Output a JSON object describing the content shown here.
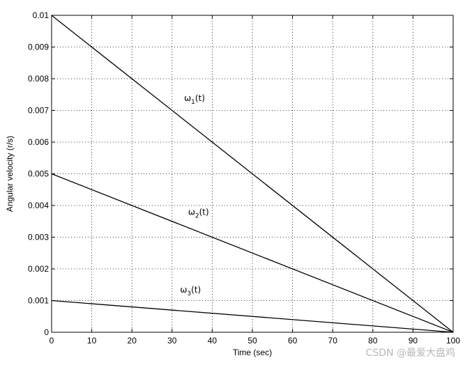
{
  "chart_data": {
    "type": "line",
    "xlabel": "Time (sec)",
    "ylabel": "Angular velocity (r/s)",
    "xlim": [
      0,
      100
    ],
    "ylim": [
      0,
      0.01
    ],
    "x_ticks": [
      "0",
      "10",
      "20",
      "30",
      "40",
      "50",
      "60",
      "70",
      "80",
      "90",
      "100"
    ],
    "y_ticks": [
      "0",
      "0.001",
      "0.002",
      "0.003",
      "0.004",
      "0.005",
      "0.006",
      "0.007",
      "0.008",
      "0.009",
      "0.01"
    ],
    "grid": true,
    "series": [
      {
        "name": "ω₁(t)",
        "label_main": "ω",
        "label_sub": "1",
        "label_tail": "(t)",
        "label_at": [
          33,
          0.0073
        ],
        "x": [
          0,
          100
        ],
        "y": [
          0.01,
          0
        ]
      },
      {
        "name": "ω₂(t)",
        "label_main": "ω",
        "label_sub": "2",
        "label_tail": "(t)",
        "label_at": [
          34,
          0.0037
        ],
        "x": [
          0,
          100
        ],
        "y": [
          0.005,
          0
        ]
      },
      {
        "name": "ω₃(t)",
        "label_main": "ω",
        "label_sub": "3",
        "label_tail": "(t)",
        "label_at": [
          32,
          0.00125
        ],
        "x": [
          0,
          100
        ],
        "y": [
          0.001,
          0
        ]
      }
    ]
  },
  "watermark": "CSDN @最爱大盘鸡"
}
